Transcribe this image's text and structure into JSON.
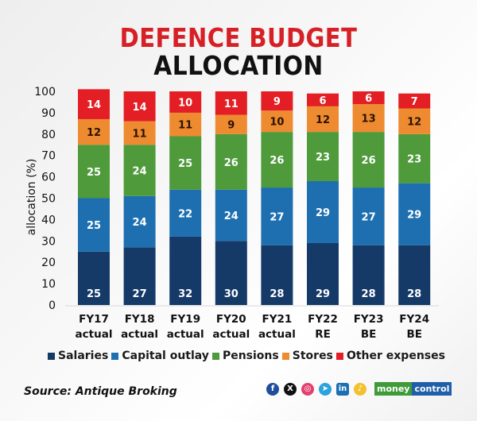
{
  "header": {
    "title_line1": "DEFENCE BUDGET",
    "title_line2": "ALLOCATION"
  },
  "chart_data": {
    "type": "bar",
    "stacked": true,
    "title": "DEFENCE BUDGET ALLOCATION",
    "xlabel": "",
    "ylabel": "allocation (%)",
    "ylim": [
      0,
      100
    ],
    "yticks": [
      0,
      10,
      20,
      30,
      40,
      50,
      60,
      70,
      80,
      90,
      100
    ],
    "grid": false,
    "legend_position": "bottom",
    "categories": [
      [
        "FY17",
        "actual"
      ],
      [
        "FY18",
        "actual"
      ],
      [
        "FY19",
        "actual"
      ],
      [
        "FY20",
        "actual"
      ],
      [
        "FY21",
        "actual"
      ],
      [
        "FY22",
        "RE"
      ],
      [
        "FY23",
        "BE"
      ],
      [
        "FY24",
        "BE"
      ]
    ],
    "series": [
      {
        "name": "Salaries",
        "color": "#163a68",
        "label_color": "#ffffff",
        "values": [
          25,
          27,
          32,
          30,
          28,
          29,
          28,
          28
        ]
      },
      {
        "name": "Capital outlay",
        "color": "#1e6fb0",
        "label_color": "#ffffff",
        "values": [
          25,
          24,
          22,
          24,
          27,
          29,
          27,
          29
        ]
      },
      {
        "name": "Pensions",
        "color": "#4f9a3b",
        "label_color": "#ffffff",
        "values": [
          25,
          24,
          25,
          26,
          26,
          23,
          26,
          23
        ]
      },
      {
        "name": "Stores",
        "color": "#ee8a2f",
        "label_color": "#2a1200",
        "values": [
          12,
          11,
          11,
          9,
          10,
          12,
          13,
          12
        ]
      },
      {
        "name": "Other expenses",
        "color": "#e31e24",
        "label_color": "#ffffff",
        "values": [
          14,
          14,
          10,
          11,
          9,
          6,
          6,
          7
        ]
      }
    ]
  },
  "footer": {
    "source": "Source: Antique Broking",
    "social_icons": [
      "facebook-icon",
      "x-icon",
      "instagram-icon",
      "telegram-icon",
      "linkedin-icon",
      "koo-icon"
    ],
    "brand_part1": "money",
    "brand_part2": "control"
  }
}
